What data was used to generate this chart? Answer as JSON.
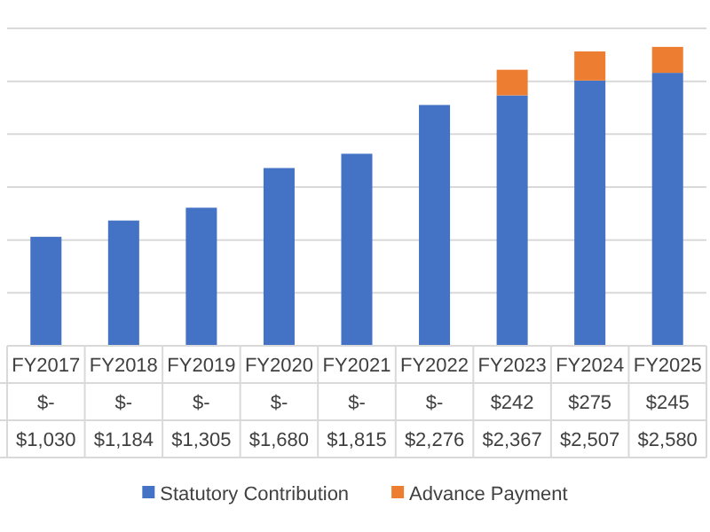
{
  "chart_data": {
    "type": "bar",
    "stacked": true,
    "categories": [
      "FY2017",
      "FY2018",
      "FY2019",
      "FY2020",
      "FY2021",
      "FY2022",
      "FY2023",
      "FY2024",
      "FY2025"
    ],
    "series": [
      {
        "name": "Statutory Contribution",
        "color": "#4472c4",
        "values": [
          1030,
          1184,
          1305,
          1680,
          1815,
          2276,
          2367,
          2507,
          2580
        ],
        "value_labels": [
          "$1,030",
          "$1,184",
          "$1,305",
          "$1,680",
          "$1,815",
          "$2,276",
          "$2,367",
          "$2,507",
          "$2,580"
        ]
      },
      {
        "name": "Advance Payment",
        "color": "#ed7d31",
        "values": [
          0,
          0,
          0,
          0,
          0,
          0,
          242,
          275,
          245
        ],
        "value_labels": [
          "$-",
          "$-",
          "$-",
          "$-",
          "$-",
          "$-",
          "$242",
          "$275",
          "$245"
        ]
      }
    ],
    "ylim": [
      0,
      3000
    ],
    "yticks": [
      {
        "value": 0,
        "label": null
      },
      {
        "value": 500,
        "label": null
      },
      {
        "value": 1000,
        "label": null
      },
      {
        "value": 1500,
        "label": null
      },
      {
        "value": 2000,
        "label": null
      },
      {
        "value": 2500,
        "label": null
      },
      {
        "value": 3000,
        "label": null
      }
    ],
    "grid": true,
    "legend": "bottom",
    "tick_labels": "x"
  }
}
